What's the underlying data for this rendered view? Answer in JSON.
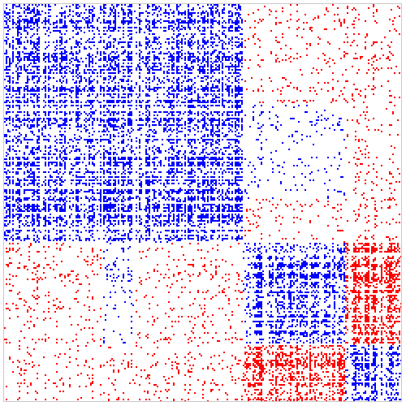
{
  "chart_data": {
    "type": "sparsity-matrix",
    "title": "",
    "xlabel": "",
    "ylabel": "",
    "grid": false,
    "legend": "none",
    "colors": {
      "positive": "#0000ff",
      "negative": "#ff0000",
      "frame": "#c8c8c8",
      "background": "#ffffff"
    },
    "value_levels": [
      "positive",
      "negative"
    ],
    "description_of_structure_hidden": true
  }
}
